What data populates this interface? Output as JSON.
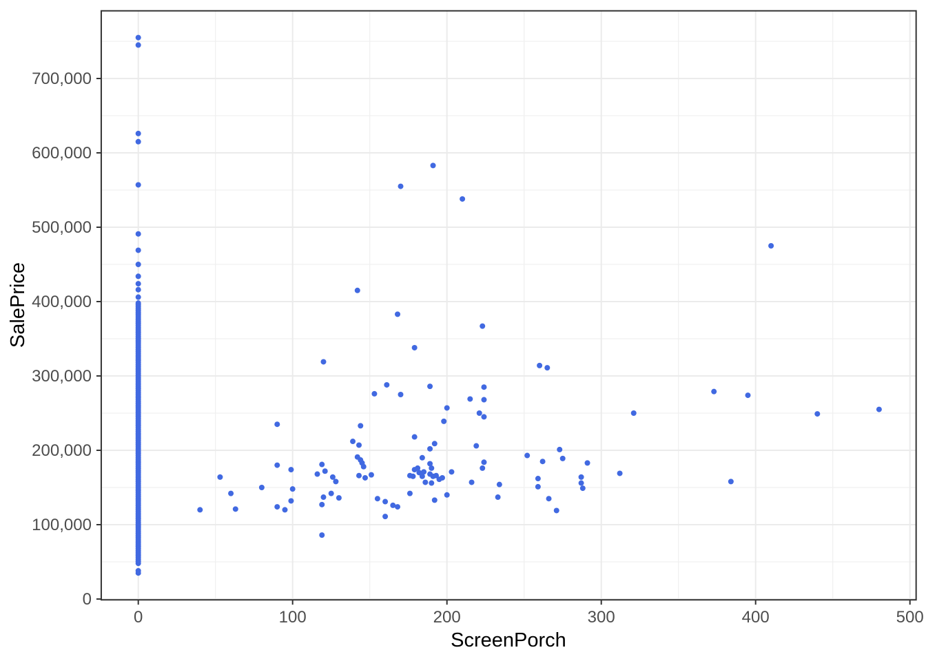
{
  "chart_data": {
    "type": "scatter",
    "title": "",
    "xlabel": "ScreenPorch",
    "ylabel": "SalePrice",
    "legend": "none",
    "grid": "major+minor",
    "xlim": [
      -24,
      504
    ],
    "ylim": [
      -1100,
      791000
    ],
    "x_ticks": [
      0,
      100,
      200,
      300,
      400,
      500
    ],
    "x_tick_labels": [
      "0",
      "100",
      "200",
      "300",
      "400",
      "500"
    ],
    "y_ticks": [
      0,
      100000,
      200000,
      300000,
      400000,
      500000,
      600000,
      700000
    ],
    "y_tick_labels": [
      "0",
      "100,000",
      "200,000",
      "300,000",
      "400,000",
      "500,000",
      "600,000",
      "700,000"
    ],
    "x_minor_ticks": [
      50,
      150,
      250,
      350,
      450
    ],
    "y_minor_ticks": [
      50000,
      150000,
      250000,
      350000,
      450000,
      550000,
      650000,
      750000
    ],
    "style": {
      "point_color": "#4169E1",
      "point_radius_px": 4,
      "panel_background": "#FFFFFF",
      "panel_border_color": "#333333",
      "grid_major_color": "#EBEBEB",
      "grid_minor_color": "#F0F0F0",
      "tick_color": "#333333",
      "tick_label_color": "#4D4D4D",
      "axis_title_color": "#000000"
    },
    "points": [
      [
        40,
        120000
      ],
      [
        53,
        164000
      ],
      [
        60,
        142000
      ],
      [
        63,
        121000
      ],
      [
        80,
        150000
      ],
      [
        90,
        235000
      ],
      [
        90,
        180000
      ],
      [
        90,
        124000
      ],
      [
        95,
        120000
      ],
      [
        99,
        174000
      ],
      [
        99,
        132000
      ],
      [
        100,
        148000
      ],
      [
        119,
        86000
      ],
      [
        120,
        319000
      ],
      [
        116,
        168000
      ],
      [
        119,
        181000
      ],
      [
        119,
        127000
      ],
      [
        120,
        137000
      ],
      [
        121,
        172000
      ],
      [
        125,
        142000
      ],
      [
        126,
        164000
      ],
      [
        128,
        158000
      ],
      [
        130,
        136000
      ],
      [
        139,
        212000
      ],
      [
        142,
        191000
      ],
      [
        142,
        415000
      ],
      [
        143,
        207000
      ],
      [
        143,
        166000
      ],
      [
        144,
        233000
      ],
      [
        144,
        187000
      ],
      [
        145,
        183000
      ],
      [
        146,
        178000
      ],
      [
        147,
        163000
      ],
      [
        151,
        167000
      ],
      [
        153,
        276000
      ],
      [
        155,
        135000
      ],
      [
        160,
        131000
      ],
      [
        160,
        111000
      ],
      [
        161,
        288000
      ],
      [
        165,
        126000
      ],
      [
        168,
        124000
      ],
      [
        168,
        383000
      ],
      [
        170,
        275000
      ],
      [
        170,
        555000
      ],
      [
        176,
        142000
      ],
      [
        176,
        166000
      ],
      [
        178,
        165000
      ],
      [
        179,
        174000
      ],
      [
        179,
        218000
      ],
      [
        179,
        338000
      ],
      [
        181,
        176000
      ],
      [
        182,
        170000
      ],
      [
        184,
        190000
      ],
      [
        184,
        165000
      ],
      [
        185,
        171000
      ],
      [
        186,
        157000
      ],
      [
        189,
        286000
      ],
      [
        189,
        182000
      ],
      [
        189,
        202000
      ],
      [
        189,
        168000
      ],
      [
        190,
        176000
      ],
      [
        190,
        156000
      ],
      [
        191,
        165000
      ],
      [
        191,
        583000
      ],
      [
        192,
        133000
      ],
      [
        192,
        209000
      ],
      [
        193,
        166000
      ],
      [
        195,
        161000
      ],
      [
        197,
        163000
      ],
      [
        198,
        239000
      ],
      [
        200,
        140000
      ],
      [
        200,
        257000
      ],
      [
        203,
        171000
      ],
      [
        210,
        538000
      ],
      [
        215,
        269000
      ],
      [
        216,
        157000
      ],
      [
        219,
        206000
      ],
      [
        221,
        250000
      ],
      [
        223,
        176000
      ],
      [
        223,
        367000
      ],
      [
        224,
        285000
      ],
      [
        224,
        268000
      ],
      [
        224,
        184000
      ],
      [
        224,
        245000
      ],
      [
        233,
        137000
      ],
      [
        234,
        154000
      ],
      [
        252,
        193000
      ],
      [
        259,
        162000
      ],
      [
        259,
        151000
      ],
      [
        260,
        314000
      ],
      [
        262,
        185000
      ],
      [
        265,
        311000
      ],
      [
        266,
        135000
      ],
      [
        271,
        119000
      ],
      [
        273,
        201000
      ],
      [
        275,
        189000
      ],
      [
        287,
        164000
      ],
      [
        287,
        156000
      ],
      [
        288,
        149000
      ],
      [
        291,
        183000
      ],
      [
        312,
        169000
      ],
      [
        321,
        250000
      ],
      [
        373,
        279000
      ],
      [
        384,
        158000
      ],
      [
        395,
        274000
      ],
      [
        410,
        475000
      ],
      [
        440,
        249000
      ],
      [
        480,
        255000
      ]
    ],
    "zero_screenporch_column": {
      "x": 0,
      "isolated_values": [
        755000,
        745000,
        626000,
        615000,
        557000,
        491000,
        469000,
        450000,
        434000,
        424000,
        416000,
        406000,
        38000,
        35000
      ],
      "dense_band": {
        "from": 48000,
        "to": 398000,
        "step": 2500
      }
    }
  }
}
